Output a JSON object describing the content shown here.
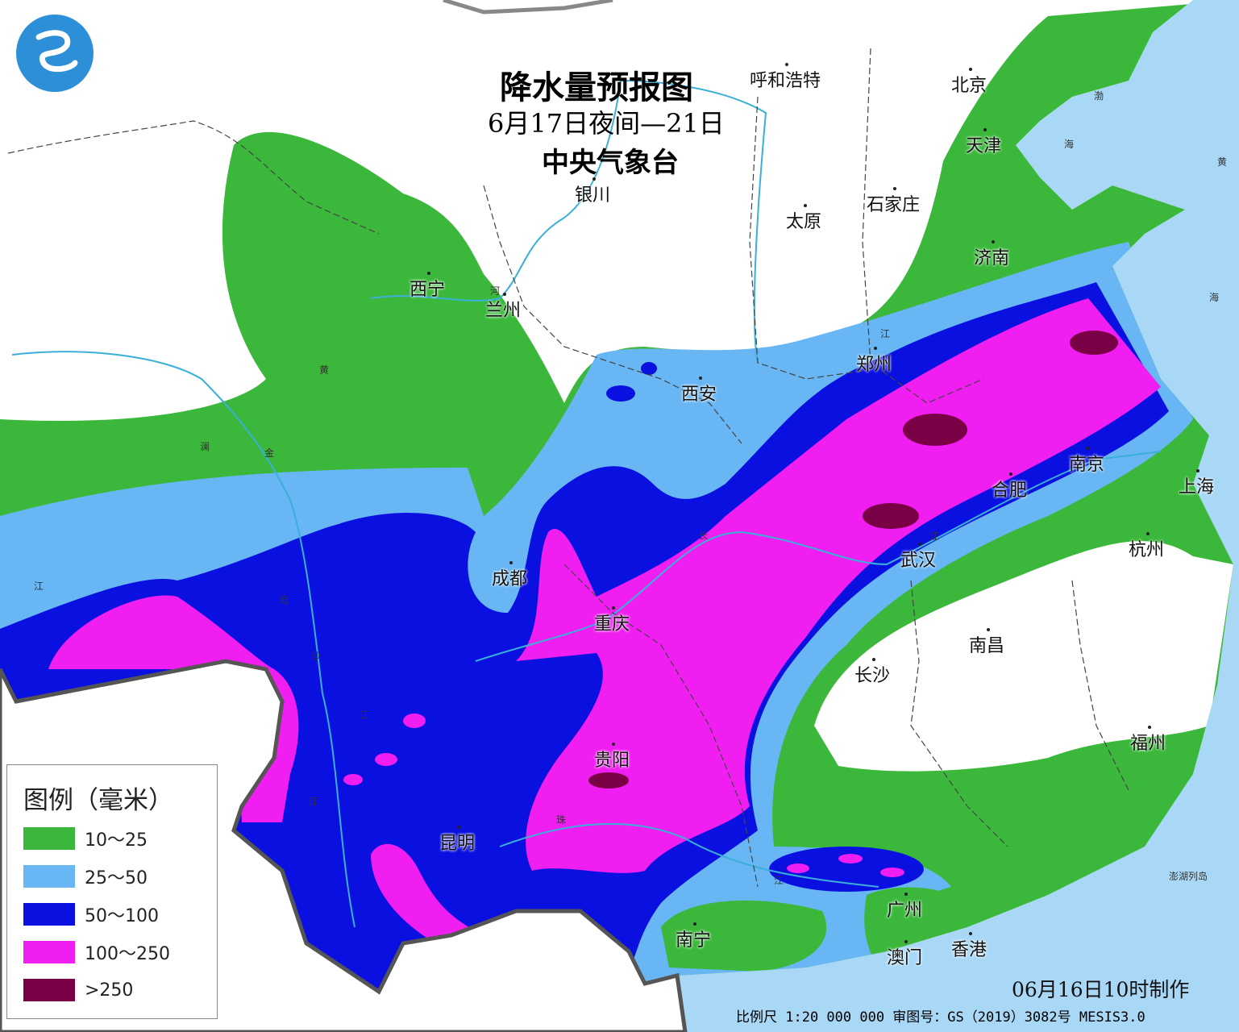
{
  "title": "降水量预报图",
  "subtitle": "6月17日夜间—21日",
  "organization": "中央气象台",
  "legend": {
    "title": "图例（毫米）",
    "items": [
      {
        "label": "10～25",
        "color": "#3bb83b"
      },
      {
        "label": "25～50",
        "color": "#68b6f4"
      },
      {
        "label": "50～100",
        "color": "#0a10e0"
      },
      {
        "label": "100～250",
        "color": "#f01ef0"
      },
      {
        "label": ">250",
        "color": "#7a0046"
      }
    ]
  },
  "cities": [
    "呼和浩特",
    "北京",
    "天津",
    "银川",
    "太原",
    "石家庄",
    "济南",
    "西宁",
    "兰州",
    "郑州",
    "西安",
    "南京",
    "合肥",
    "上海",
    "成都",
    "武汉",
    "杭州",
    "重庆",
    "南昌",
    "长沙",
    "福州",
    "贵阳",
    "昆明",
    "广州",
    "南宁",
    "澳门",
    "香港"
  ],
  "water_labels": [
    "河",
    "黄",
    "澜",
    "金",
    "江",
    "沧",
    "沙",
    "江",
    "江",
    "长",
    "江",
    "江",
    "珠",
    "江",
    "渤",
    "海",
    "黄",
    "海",
    "澎湖列岛"
  ],
  "issued": "06月16日10时制作",
  "footer": "比例尺 1:20 000 000  审图号：GS（2019）3082号 MESIS3.0",
  "sea_color": "#a9d8f7"
}
